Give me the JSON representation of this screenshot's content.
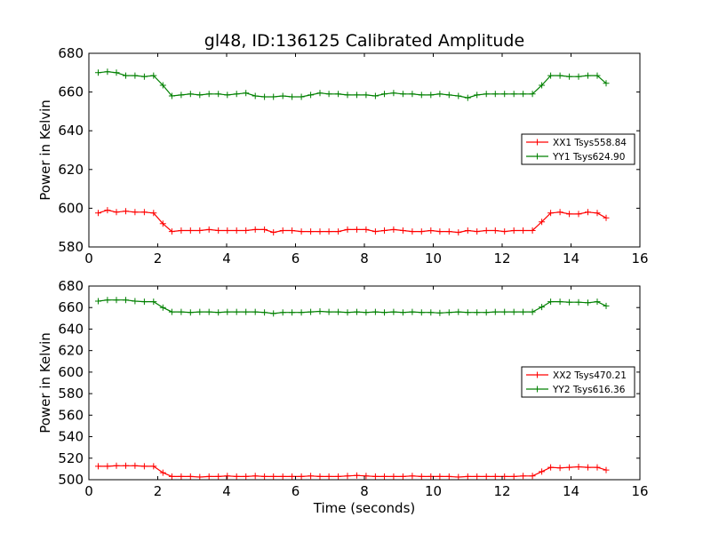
{
  "figure": {
    "title": "gl48, ID:136125 Calibrated Amplitude"
  },
  "chart_data": [
    {
      "type": "line",
      "panel": "top",
      "title": "gl48, ID:136125 Calibrated Amplitude",
      "xlabel": "",
      "ylabel": "Power in Kelvin",
      "xlim": [
        0,
        16
      ],
      "ylim": [
        580,
        680
      ],
      "xticks": [
        0,
        2,
        4,
        6,
        8,
        10,
        12,
        14,
        16
      ],
      "yticks": [
        580,
        600,
        620,
        640,
        660,
        680
      ],
      "grid": false,
      "legend_position": "center-right",
      "x": [
        0.27,
        0.54,
        0.8,
        1.07,
        1.34,
        1.61,
        1.88,
        2.15,
        2.41,
        2.68,
        2.95,
        3.22,
        3.49,
        3.76,
        4.02,
        4.29,
        4.56,
        4.83,
        5.1,
        5.36,
        5.63,
        5.9,
        6.17,
        6.44,
        6.71,
        6.97,
        7.24,
        7.51,
        7.78,
        8.05,
        8.32,
        8.58,
        8.85,
        9.12,
        9.39,
        9.66,
        9.93,
        10.19,
        10.46,
        10.73,
        11.0,
        11.27,
        11.54,
        11.8,
        12.07,
        12.34,
        12.61,
        12.88,
        13.15,
        13.41,
        13.68,
        13.95,
        14.22,
        14.49,
        14.76,
        15.02
      ],
      "series": [
        {
          "name": "XX1 Tsys558.84",
          "color": "#ff0000",
          "values": [
            597.5,
            599.0,
            598.0,
            598.5,
            598.0,
            598.0,
            597.5,
            592.0,
            588.0,
            588.5,
            588.5,
            588.5,
            589.0,
            588.5,
            588.5,
            588.5,
            588.5,
            589.0,
            589.0,
            587.5,
            588.5,
            588.5,
            588.0,
            588.0,
            588.0,
            588.0,
            588.0,
            589.0,
            589.0,
            589.0,
            588.0,
            588.5,
            589.0,
            588.5,
            588.0,
            588.0,
            588.5,
            588.0,
            588.0,
            587.5,
            588.5,
            588.0,
            588.5,
            588.5,
            588.0,
            588.5,
            588.5,
            588.5,
            593.0,
            597.5,
            598.0,
            597.0,
            597.0,
            598.0,
            597.5,
            595.0
          ]
        },
        {
          "name": "YY1 Tsys624.90",
          "color": "#008000",
          "values": [
            670.0,
            670.5,
            670.0,
            668.5,
            668.5,
            668.0,
            668.5,
            663.5,
            658.0,
            658.5,
            659.0,
            658.5,
            659.0,
            659.0,
            658.5,
            659.0,
            659.5,
            658.0,
            657.5,
            657.5,
            658.0,
            657.5,
            657.5,
            658.5,
            659.5,
            659.0,
            659.0,
            658.5,
            658.5,
            658.5,
            658.0,
            659.0,
            659.5,
            659.0,
            659.0,
            658.5,
            658.5,
            659.0,
            658.5,
            658.0,
            657.0,
            658.5,
            659.0,
            659.0,
            659.0,
            659.0,
            659.0,
            659.0,
            663.5,
            668.5,
            668.5,
            668.0,
            668.0,
            668.5,
            668.5,
            664.5
          ]
        }
      ]
    },
    {
      "type": "line",
      "panel": "bottom",
      "title": "",
      "xlabel": "Time (seconds)",
      "ylabel": "Power in Kelvin",
      "xlim": [
        0,
        16
      ],
      "ylim": [
        500,
        680
      ],
      "xticks": [
        0,
        2,
        4,
        6,
        8,
        10,
        12,
        14,
        16
      ],
      "yticks": [
        500,
        520,
        540,
        560,
        580,
        600,
        620,
        640,
        660,
        680
      ],
      "grid": false,
      "legend_position": "center-right",
      "x": [
        0.27,
        0.54,
        0.8,
        1.07,
        1.34,
        1.61,
        1.88,
        2.15,
        2.41,
        2.68,
        2.95,
        3.22,
        3.49,
        3.76,
        4.02,
        4.29,
        4.56,
        4.83,
        5.1,
        5.36,
        5.63,
        5.9,
        6.17,
        6.44,
        6.71,
        6.97,
        7.24,
        7.51,
        7.78,
        8.05,
        8.32,
        8.58,
        8.85,
        9.12,
        9.39,
        9.66,
        9.93,
        10.19,
        10.46,
        10.73,
        11.0,
        11.27,
        11.54,
        11.8,
        12.07,
        12.34,
        12.61,
        12.88,
        13.15,
        13.41,
        13.68,
        13.95,
        14.22,
        14.49,
        14.76,
        15.02
      ],
      "series": [
        {
          "name": "XX2 Tsys470.21",
          "color": "#ff0000",
          "values": [
            512.5,
            512.5,
            513.0,
            513.0,
            513.0,
            512.5,
            512.5,
            506.5,
            503.0,
            503.0,
            503.0,
            502.5,
            503.0,
            503.0,
            503.5,
            503.0,
            503.0,
            503.5,
            503.0,
            503.0,
            503.0,
            503.0,
            503.0,
            503.5,
            503.0,
            503.0,
            503.0,
            503.5,
            504.0,
            503.5,
            503.0,
            503.0,
            503.0,
            503.0,
            503.5,
            503.0,
            503.0,
            503.0,
            503.0,
            502.5,
            503.0,
            503.0,
            503.0,
            503.0,
            503.0,
            503.0,
            503.5,
            503.5,
            507.5,
            511.5,
            511.0,
            511.5,
            512.0,
            511.5,
            511.5,
            509.0
          ]
        },
        {
          "name": "YY2 Tsys616.36",
          "color": "#008000",
          "values": [
            666.0,
            667.0,
            667.0,
            667.0,
            666.0,
            665.5,
            665.5,
            660.0,
            656.0,
            656.0,
            655.5,
            656.0,
            656.0,
            655.5,
            656.0,
            656.0,
            656.0,
            656.0,
            655.5,
            654.5,
            655.5,
            655.5,
            655.5,
            656.0,
            656.5,
            656.0,
            656.0,
            655.5,
            656.0,
            655.5,
            656.0,
            655.5,
            656.0,
            655.5,
            656.0,
            655.5,
            655.5,
            655.0,
            655.5,
            656.0,
            655.5,
            655.5,
            655.5,
            656.0,
            656.0,
            656.0,
            656.0,
            656.0,
            660.5,
            665.5,
            665.5,
            665.0,
            665.0,
            664.5,
            665.5,
            661.5
          ]
        }
      ]
    }
  ]
}
